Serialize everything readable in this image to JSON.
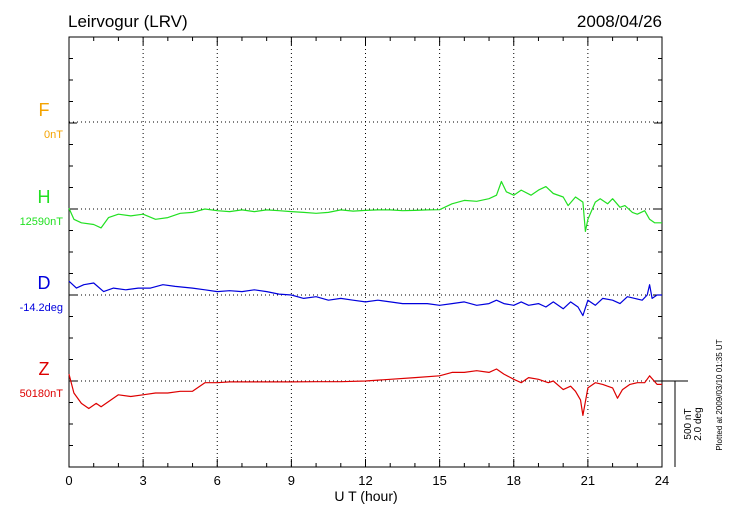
{
  "chart_data": {
    "type": "line",
    "title": "Leirvogur (LRV)",
    "date": "2008/04/26",
    "xlabel": "U T (hour)",
    "xlim": [
      0,
      24
    ],
    "xticks": [
      "0",
      "3",
      "6",
      "9",
      "12",
      "15",
      "18",
      "21",
      "24"
    ],
    "grid": true,
    "scale_bar": {
      "line1": "500 nT",
      "line2": "2.0 deg"
    },
    "plotted_note": "Plotted at 2009/03/10 01:35 UT",
    "components": [
      {
        "name": "F",
        "baseline": "0nT",
        "color": "#f4a300",
        "points": []
      },
      {
        "name": "H",
        "baseline": "12590nT",
        "color": "#22e022",
        "points": [
          [
            0,
            4
          ],
          [
            0.2,
            -60
          ],
          [
            0.5,
            -80
          ],
          [
            1,
            -90
          ],
          [
            1.3,
            -110
          ],
          [
            1.6,
            -50
          ],
          [
            2,
            -30
          ],
          [
            2.5,
            -40
          ],
          [
            3,
            -30
          ],
          [
            3.5,
            -60
          ],
          [
            4,
            -50
          ],
          [
            4.5,
            -25
          ],
          [
            5,
            -20
          ],
          [
            5.5,
            0
          ],
          [
            6,
            -10
          ],
          [
            6.5,
            -15
          ],
          [
            7,
            -5
          ],
          [
            7.5,
            -15
          ],
          [
            8,
            -5
          ],
          [
            8.5,
            -10
          ],
          [
            9,
            -15
          ],
          [
            9.5,
            -20
          ],
          [
            10,
            -25
          ],
          [
            10.5,
            -20
          ],
          [
            11,
            -5
          ],
          [
            11.5,
            -12
          ],
          [
            12,
            -8
          ],
          [
            12.5,
            -5
          ],
          [
            13,
            -5
          ],
          [
            13.5,
            -10
          ],
          [
            14,
            -8
          ],
          [
            14.5,
            -5
          ],
          [
            15,
            -4
          ],
          [
            15.5,
            30
          ],
          [
            16,
            50
          ],
          [
            16.5,
            45
          ],
          [
            17,
            60
          ],
          [
            17.3,
            80
          ],
          [
            17.5,
            160
          ],
          [
            17.7,
            100
          ],
          [
            18,
            80
          ],
          [
            18.3,
            110
          ],
          [
            18.7,
            80
          ],
          [
            19,
            110
          ],
          [
            19.3,
            130
          ],
          [
            19.6,
            90
          ],
          [
            20,
            70
          ],
          [
            20.2,
            20
          ],
          [
            20.5,
            70
          ],
          [
            20.8,
            40
          ],
          [
            20.9,
            -130
          ],
          [
            21,
            -60
          ],
          [
            21.3,
            40
          ],
          [
            21.5,
            60
          ],
          [
            21.8,
            30
          ],
          [
            22,
            60
          ],
          [
            22.3,
            10
          ],
          [
            22.5,
            20
          ],
          [
            22.8,
            -20
          ],
          [
            23,
            -30
          ],
          [
            23.3,
            -10
          ],
          [
            23.5,
            -60
          ],
          [
            23.7,
            -80
          ],
          [
            24,
            -80
          ]
        ]
      },
      {
        "name": "D",
        "baseline": "-14.2deg",
        "color": "#0000dd",
        "points": [
          [
            0,
            80
          ],
          [
            0.3,
            40
          ],
          [
            0.6,
            60
          ],
          [
            1,
            70
          ],
          [
            1.4,
            20
          ],
          [
            1.8,
            40
          ],
          [
            2.3,
            30
          ],
          [
            2.8,
            40
          ],
          [
            3.3,
            40
          ],
          [
            3.8,
            60
          ],
          [
            4.3,
            50
          ],
          [
            5,
            40
          ],
          [
            5.5,
            30
          ],
          [
            6,
            20
          ],
          [
            6.5,
            25
          ],
          [
            7,
            20
          ],
          [
            7.5,
            30
          ],
          [
            8,
            20
          ],
          [
            8.5,
            5
          ],
          [
            9,
            0
          ],
          [
            9.5,
            -20
          ],
          [
            10,
            -10
          ],
          [
            10.5,
            -30
          ],
          [
            11,
            -20
          ],
          [
            11.5,
            -30
          ],
          [
            12,
            -40
          ],
          [
            12.5,
            -30
          ],
          [
            13,
            -40
          ],
          [
            13.5,
            -50
          ],
          [
            14,
            -50
          ],
          [
            14.5,
            -50
          ],
          [
            15,
            -60
          ],
          [
            15.5,
            -50
          ],
          [
            16,
            -40
          ],
          [
            16.5,
            -60
          ],
          [
            17,
            -50
          ],
          [
            17.3,
            -30
          ],
          [
            17.6,
            -50
          ],
          [
            18,
            -60
          ],
          [
            18.3,
            -40
          ],
          [
            18.6,
            -60
          ],
          [
            19,
            -50
          ],
          [
            19.3,
            -70
          ],
          [
            19.6,
            -40
          ],
          [
            20,
            -80
          ],
          [
            20.3,
            -40
          ],
          [
            20.6,
            -70
          ],
          [
            20.8,
            -120
          ],
          [
            21,
            -30
          ],
          [
            21.3,
            -60
          ],
          [
            21.6,
            -20
          ],
          [
            22,
            -30
          ],
          [
            22.3,
            -50
          ],
          [
            22.6,
            -10
          ],
          [
            22.9,
            -20
          ],
          [
            23.2,
            -30
          ],
          [
            23.4,
            0
          ],
          [
            23.5,
            60
          ],
          [
            23.6,
            -20
          ],
          [
            23.8,
            0
          ],
          [
            24,
            0
          ]
        ]
      },
      {
        "name": "Z",
        "baseline": "50180nT",
        "color": "#dd0000",
        "points": [
          [
            0,
            40
          ],
          [
            0.2,
            -70
          ],
          [
            0.5,
            -130
          ],
          [
            0.8,
            -160
          ],
          [
            1.1,
            -130
          ],
          [
            1.3,
            -150
          ],
          [
            1.6,
            -120
          ],
          [
            2,
            -80
          ],
          [
            2.5,
            -90
          ],
          [
            3,
            -80
          ],
          [
            3.5,
            -70
          ],
          [
            4,
            -70
          ],
          [
            4.5,
            -60
          ],
          [
            5,
            -60
          ],
          [
            5.5,
            -10
          ],
          [
            6,
            -10
          ],
          [
            6.5,
            -5
          ],
          [
            7,
            -5
          ],
          [
            8,
            -5
          ],
          [
            9,
            -5
          ],
          [
            10,
            -4
          ],
          [
            11,
            -4
          ],
          [
            12,
            0
          ],
          [
            13,
            10
          ],
          [
            14,
            20
          ],
          [
            15,
            30
          ],
          [
            15.5,
            50
          ],
          [
            16,
            50
          ],
          [
            16.5,
            60
          ],
          [
            17,
            50
          ],
          [
            17.3,
            70
          ],
          [
            17.6,
            40
          ],
          [
            18,
            10
          ],
          [
            18.3,
            -10
          ],
          [
            18.6,
            20
          ],
          [
            19,
            10
          ],
          [
            19.4,
            -10
          ],
          [
            19.6,
            0
          ],
          [
            20,
            -50
          ],
          [
            20.3,
            -30
          ],
          [
            20.5,
            -60
          ],
          [
            20.7,
            -110
          ],
          [
            20.8,
            -200
          ],
          [
            21,
            -40
          ],
          [
            21.3,
            -10
          ],
          [
            21.6,
            -20
          ],
          [
            21.8,
            -30
          ],
          [
            22,
            -40
          ],
          [
            22.2,
            -100
          ],
          [
            22.4,
            -50
          ],
          [
            22.7,
            -20
          ],
          [
            23,
            -10
          ],
          [
            23.3,
            -10
          ],
          [
            23.5,
            30
          ],
          [
            23.8,
            -20
          ],
          [
            24,
            -20
          ]
        ]
      }
    ]
  }
}
